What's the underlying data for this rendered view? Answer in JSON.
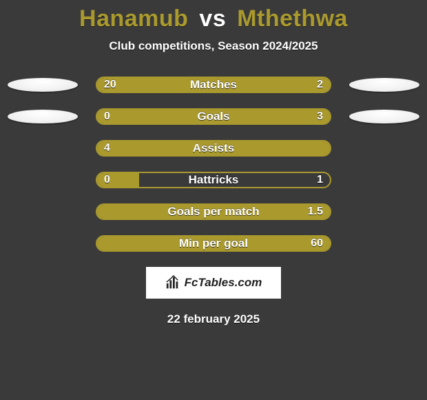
{
  "header": {
    "player1": "Hanamub",
    "vs": "vs",
    "player2": "Mthethwa",
    "subtitle": "Club competitions, Season 2024/2025",
    "player1_color": "#aa9a2e",
    "player2_color": "#aa9a2e",
    "vs_color": "#ffffff"
  },
  "colors": {
    "fill": "#aa9a2e",
    "outline": "#aa9a2e",
    "track": "#3a3a3a"
  },
  "stats": [
    {
      "label": "Matches",
      "left_text": "20",
      "right_text": "2",
      "left_pct": 78,
      "right_pct": 22,
      "show_avatars": true
    },
    {
      "label": "Goals",
      "left_text": "0",
      "right_text": "3",
      "left_pct": 18,
      "right_pct": 82,
      "show_avatars": true
    },
    {
      "label": "Assists",
      "left_text": "4",
      "right_text": "",
      "left_pct": 100,
      "right_pct": 0,
      "show_avatars": false
    },
    {
      "label": "Hattricks",
      "left_text": "0",
      "right_text": "1",
      "left_pct": 18,
      "right_pct": 0,
      "show_avatars": false
    },
    {
      "label": "Goals per match",
      "left_text": "",
      "right_text": "1.5",
      "left_pct": 0,
      "right_pct": 100,
      "show_avatars": false
    },
    {
      "label": "Min per goal",
      "left_text": "",
      "right_text": "60",
      "left_pct": 0,
      "right_pct": 100,
      "show_avatars": false
    }
  ],
  "attribution": "FcTables.com",
  "date": "22 february 2025"
}
